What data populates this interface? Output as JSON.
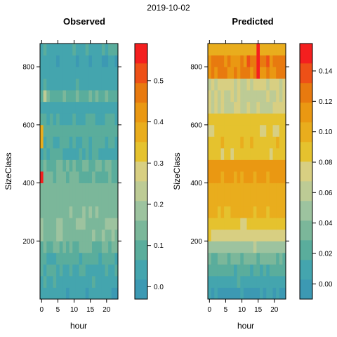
{
  "date": "2019-10-02",
  "chart_data": [
    {
      "type": "heatmap",
      "title": "Observed",
      "xlabel": "hour",
      "ylabel": "SizeClass",
      "x_ticks": [
        0,
        5,
        10,
        15,
        20
      ],
      "y_ticks": [
        200,
        400,
        600,
        800
      ],
      "xlim": [
        -0.5,
        23.5
      ],
      "ylim": [
        0,
        880
      ],
      "colorbar": {
        "ticks": [
          0.0,
          0.1,
          0.2,
          0.3,
          0.4,
          0.5
        ],
        "tick_labels": [
          "0.0",
          "0.1",
          "0.2",
          "0.3",
          "0.4",
          "0.5"
        ],
        "range": [
          -0.03,
          0.59
        ]
      },
      "size_classes": [
        20,
        60,
        100,
        140,
        180,
        220,
        260,
        300,
        340,
        380,
        420,
        460,
        500,
        540,
        580,
        620,
        660,
        700,
        740,
        780,
        820,
        860
      ],
      "profile": [
        0.03,
        0.05,
        0.06,
        0.08,
        0.12,
        0.15,
        0.16,
        0.15,
        0.14,
        0.14,
        0.11,
        0.12,
        0.06,
        0.07,
        0.09,
        0.06,
        0.05,
        0.11,
        0.05,
        0.04,
        0.03,
        0.06
      ],
      "highlights": [
        {
          "hour": 0,
          "sizeclass": 420,
          "value": 0.55
        },
        {
          "hour": 0,
          "sizeclass": 540,
          "value": 0.36
        },
        {
          "hour": 0,
          "sizeclass": 580,
          "value": 0.38
        },
        {
          "hour": 1,
          "sizeclass": 700,
          "value": 0.22
        }
      ]
    },
    {
      "type": "heatmap",
      "title": "Predicted",
      "xlabel": "hour",
      "ylabel": "SizeClass",
      "x_ticks": [
        0,
        5,
        10,
        15,
        20
      ],
      "y_ticks": [
        200,
        400,
        600,
        800
      ],
      "xlim": [
        -0.5,
        23.5
      ],
      "ylim": [
        0,
        880
      ],
      "colorbar": {
        "ticks": [
          0.0,
          0.02,
          0.04,
          0.06,
          0.08,
          0.1,
          0.12,
          0.14
        ],
        "tick_labels": [
          "0.00",
          "0.02",
          "0.04",
          "0.06",
          "0.08",
          "0.10",
          "0.12",
          "0.14"
        ],
        "range": [
          -0.01,
          0.158
        ]
      },
      "size_classes": [
        20,
        60,
        100,
        140,
        180,
        220,
        260,
        300,
        340,
        380,
        420,
        460,
        500,
        540,
        580,
        620,
        660,
        700,
        740,
        780,
        820,
        860
      ],
      "profile": [
        0.0,
        0.01,
        0.02,
        0.03,
        0.05,
        0.075,
        0.085,
        0.095,
        0.1,
        0.1,
        0.11,
        0.112,
        0.085,
        0.09,
        0.085,
        0.088,
        0.065,
        0.068,
        0.068,
        0.12,
        0.12,
        0.1
      ],
      "highlights": [
        {
          "hour": 15,
          "sizeclass": 780,
          "value": 0.155
        },
        {
          "hour": 15,
          "sizeclass": 820,
          "value": 0.155
        },
        {
          "hour": 15,
          "sizeclass": 860,
          "value": 0.15
        },
        {
          "hour": 12,
          "sizeclass": 820,
          "value": 0.14
        },
        {
          "hour": 18,
          "sizeclass": 820,
          "value": 0.14
        }
      ]
    }
  ],
  "palette": [
    "#3c99b3",
    "#44a5ae",
    "#5aad9c",
    "#7bb79a",
    "#9dc39f",
    "#bdcb95",
    "#d8cf82",
    "#e5c22e",
    "#e9ad1d",
    "#ea9812",
    "#e87a0f",
    "#ee5017",
    "#f41f1f"
  ]
}
